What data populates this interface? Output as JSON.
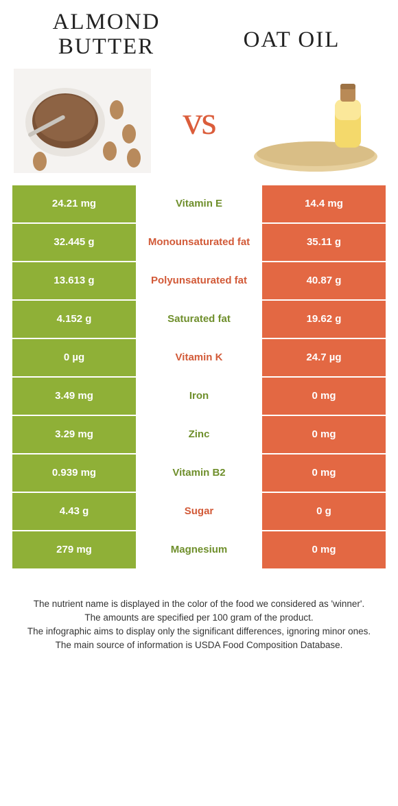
{
  "colors": {
    "left": "#8fb037",
    "right": "#e36843",
    "left_text": "#6f8f2c",
    "right_text": "#d25a38",
    "vs": "#db5d3b"
  },
  "header": {
    "left_title": "ALMOND BUTTER",
    "right_title": "OAT OIL",
    "vs": "vs"
  },
  "rows": [
    {
      "nutrient": "Vitamin E",
      "left": "24.21 mg",
      "right": "14.4 mg",
      "winner": "left"
    },
    {
      "nutrient": "Monounsaturated fat",
      "left": "32.445 g",
      "right": "35.11 g",
      "winner": "right"
    },
    {
      "nutrient": "Polyunsaturated fat",
      "left": "13.613 g",
      "right": "40.87 g",
      "winner": "right"
    },
    {
      "nutrient": "Saturated fat",
      "left": "4.152 g",
      "right": "19.62 g",
      "winner": "left"
    },
    {
      "nutrient": "Vitamin K",
      "left": "0 µg",
      "right": "24.7 µg",
      "winner": "right"
    },
    {
      "nutrient": "Iron",
      "left": "3.49 mg",
      "right": "0 mg",
      "winner": "left"
    },
    {
      "nutrient": "Zinc",
      "left": "3.29 mg",
      "right": "0 mg",
      "winner": "left"
    },
    {
      "nutrient": "Vitamin B2",
      "left": "0.939 mg",
      "right": "0 mg",
      "winner": "left"
    },
    {
      "nutrient": "Sugar",
      "left": "4.43 g",
      "right": "0 g",
      "winner": "right"
    },
    {
      "nutrient": "Magnesium",
      "left": "279 mg",
      "right": "0 mg",
      "winner": "left"
    }
  ],
  "footer": {
    "l1": "The nutrient name is displayed in the color of the food we considered as 'winner'.",
    "l2": "The amounts are specified per 100 gram of the product.",
    "l3": "The infographic aims to display only the significant differences, ignoring minor ones.",
    "l4": "The main source of information is USDA Food Composition Database."
  }
}
